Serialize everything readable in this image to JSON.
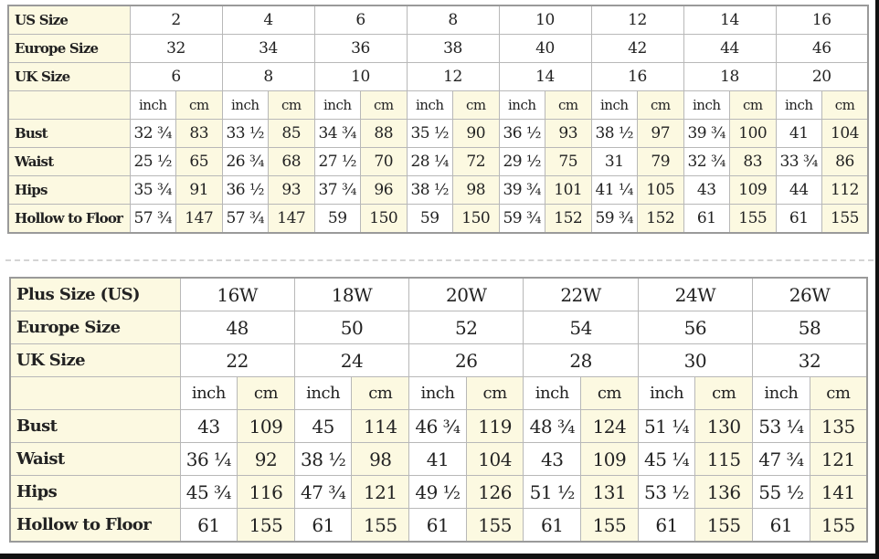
{
  "colors": {
    "label_bg": "#fcf9e1",
    "cell_bg": "#ffffff",
    "border": "#b8b8b8"
  },
  "standard": {
    "size_rows": [
      {
        "label": "US Size",
        "values": [
          "2",
          "4",
          "6",
          "8",
          "10",
          "12",
          "14",
          "16"
        ]
      },
      {
        "label": "Europe Size",
        "values": [
          "32",
          "34",
          "36",
          "38",
          "40",
          "42",
          "44",
          "46"
        ]
      },
      {
        "label": "UK Size",
        "values": [
          "6",
          "8",
          "10",
          "12",
          "14",
          "16",
          "18",
          "20"
        ]
      }
    ],
    "units": [
      "inch",
      "cm"
    ],
    "measure_rows": [
      {
        "label": "Bust",
        "values": [
          "32 ¾",
          "83",
          "33 ½",
          "85",
          "34 ¾",
          "88",
          "35 ½",
          "90",
          "36 ½",
          "93",
          "38 ½",
          "97",
          "39 ¾",
          "100",
          "41",
          "104"
        ]
      },
      {
        "label": "Waist",
        "values": [
          "25 ½",
          "65",
          "26 ¾",
          "68",
          "27 ½",
          "70",
          "28 ¼",
          "72",
          "29 ½",
          "75",
          "31",
          "79",
          "32 ¾",
          "83",
          "33 ¾",
          "86"
        ]
      },
      {
        "label": "Hips",
        "values": [
          "35 ¾",
          "91",
          "36 ½",
          "93",
          "37 ¾",
          "96",
          "38 ½",
          "98",
          "39 ¾",
          "101",
          "41 ¼",
          "105",
          "43",
          "109",
          "44",
          "112"
        ]
      },
      {
        "label": "Hollow to Floor",
        "values": [
          "57 ¾",
          "147",
          "57 ¾",
          "147",
          "59",
          "150",
          "59",
          "150",
          "59 ¾",
          "152",
          "59 ¾",
          "152",
          "61",
          "155",
          "61",
          "155"
        ]
      }
    ]
  },
  "plus": {
    "size_rows": [
      {
        "label": "Plus Size (US)",
        "values": [
          "16W",
          "18W",
          "20W",
          "22W",
          "24W",
          "26W"
        ]
      },
      {
        "label": "Europe Size",
        "values": [
          "48",
          "50",
          "52",
          "54",
          "56",
          "58"
        ]
      },
      {
        "label": "UK Size",
        "values": [
          "22",
          "24",
          "26",
          "28",
          "30",
          "32"
        ]
      }
    ],
    "units": [
      "inch",
      "cm"
    ],
    "measure_rows": [
      {
        "label": "Bust",
        "values": [
          "43",
          "109",
          "45",
          "114",
          "46 ¾",
          "119",
          "48 ¾",
          "124",
          "51 ¼",
          "130",
          "53 ¼",
          "135"
        ]
      },
      {
        "label": "Waist",
        "values": [
          "36 ¼",
          "92",
          "38 ½",
          "98",
          "41",
          "104",
          "43",
          "109",
          "45 ¼",
          "115",
          "47 ¾",
          "121"
        ]
      },
      {
        "label": "Hips",
        "values": [
          "45 ¾",
          "116",
          "47 ¾",
          "121",
          "49 ½",
          "126",
          "51 ½",
          "131",
          "53 ½",
          "136",
          "55 ½",
          "141"
        ]
      },
      {
        "label": "Hollow to Floor",
        "values": [
          "61",
          "155",
          "61",
          "155",
          "61",
          "155",
          "61",
          "155",
          "61",
          "155",
          "61",
          "155"
        ]
      }
    ]
  }
}
